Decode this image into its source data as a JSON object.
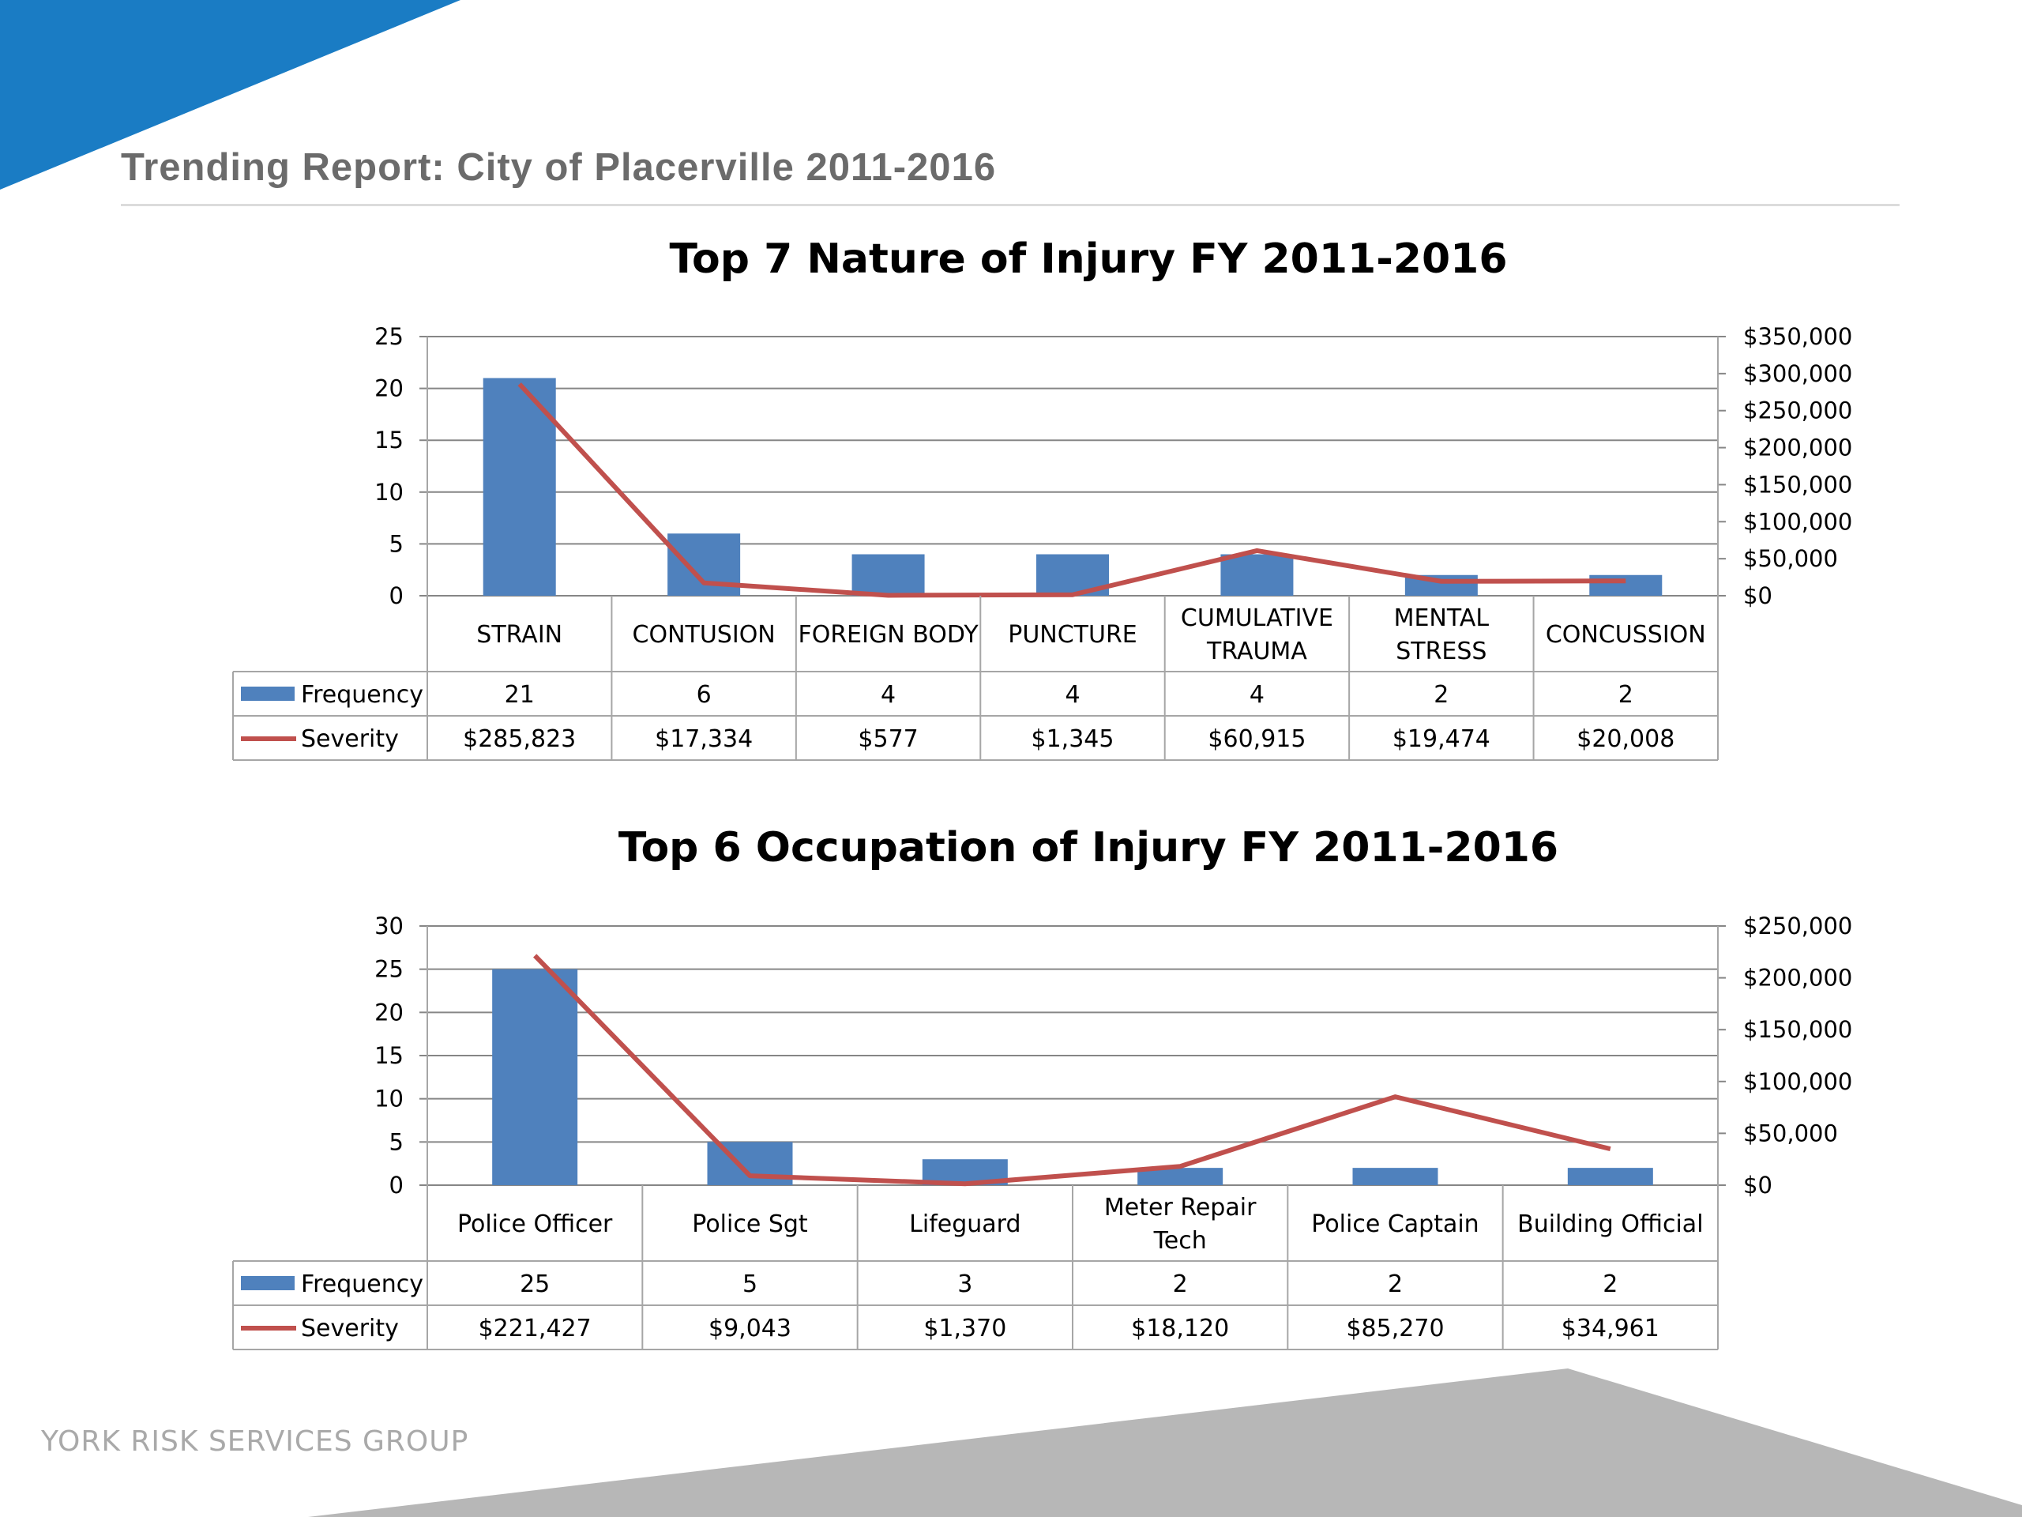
{
  "header": {
    "report_title": "Trending Report: City of Placerville 2011-2016"
  },
  "footer": {
    "brand": "YORK RISK SERVICES GROUP"
  },
  "colors": {
    "accent_blue": "#1a7cc4",
    "bar_blue": "#4f81bd",
    "line_red": "#c0504d",
    "footer_gray": "#b7b7b7"
  },
  "chart_data": [
    {
      "type": "bar",
      "title": "Top 7 Nature of Injury FY 2011-2016",
      "categories": [
        "STRAIN",
        "CONTUSION",
        "FOREIGN BODY",
        "PUNCTURE",
        "CUMULATIVE TRAUMA",
        "MENTAL STRESS",
        "CONCUSSION"
      ],
      "category_lines": [
        [
          "STRAIN"
        ],
        [
          "CONTUSION"
        ],
        [
          "FOREIGN BODY"
        ],
        [
          "PUNCTURE"
        ],
        [
          "CUMULATIVE",
          "TRAUMA"
        ],
        [
          "MENTAL",
          "STRESS"
        ],
        [
          "CONCUSSION"
        ]
      ],
      "series": [
        {
          "name": "Frequency",
          "type": "bar",
          "axis": "left",
          "values": [
            21,
            6,
            4,
            4,
            4,
            2,
            2
          ],
          "labels": [
            "21",
            "6",
            "4",
            "4",
            "4",
            "2",
            "2"
          ]
        },
        {
          "name": "Severity",
          "type": "line",
          "axis": "right",
          "values": [
            285823,
            17334,
            577,
            1345,
            60915,
            19474,
            20008
          ],
          "labels": [
            "$285,823",
            "$17,334",
            "$577",
            "$1,345",
            "$60,915",
            "$19,474",
            "$20,008"
          ]
        }
      ],
      "ylim_left": [
        0,
        25
      ],
      "yticks_left": [
        "0",
        "5",
        "10",
        "15",
        "20",
        "25"
      ],
      "ylim_right": [
        0,
        350000
      ],
      "yticks_right": [
        "$0",
        "$50,000",
        "$100,000",
        "$150,000",
        "$200,000",
        "$250,000",
        "$300,000",
        "$350,000"
      ],
      "grid": true,
      "legend": "data-table"
    },
    {
      "type": "bar",
      "title": "Top 6 Occupation of Injury FY 2011-2016",
      "categories": [
        "Police Officer",
        "Police Sgt",
        "Lifeguard",
        "Meter Repair Tech",
        "Police Captain",
        "Building Official"
      ],
      "category_lines": [
        [
          "Police Officer"
        ],
        [
          "Police Sgt"
        ],
        [
          "Lifeguard"
        ],
        [
          "Meter Repair",
          "Tech"
        ],
        [
          "Police Captain"
        ],
        [
          "Building Official"
        ]
      ],
      "series": [
        {
          "name": "Frequency",
          "type": "bar",
          "axis": "left",
          "values": [
            25,
            5,
            3,
            2,
            2,
            2
          ],
          "labels": [
            "25",
            "5",
            "3",
            "2",
            "2",
            "2"
          ]
        },
        {
          "name": "Severity",
          "type": "line",
          "axis": "right",
          "values": [
            221427,
            9043,
            1370,
            18120,
            85270,
            34961
          ],
          "labels": [
            "$221,427",
            "$9,043",
            "$1,370",
            "$18,120",
            "$85,270",
            "$34,961"
          ]
        }
      ],
      "ylim_left": [
        0,
        30
      ],
      "yticks_left": [
        "0",
        "5",
        "10",
        "15",
        "20",
        "25",
        "30"
      ],
      "ylim_right": [
        0,
        250000
      ],
      "yticks_right": [
        "$0",
        "$50,000",
        "$100,000",
        "$150,000",
        "$200,000",
        "$250,000"
      ],
      "grid": true,
      "legend": "data-table"
    }
  ]
}
